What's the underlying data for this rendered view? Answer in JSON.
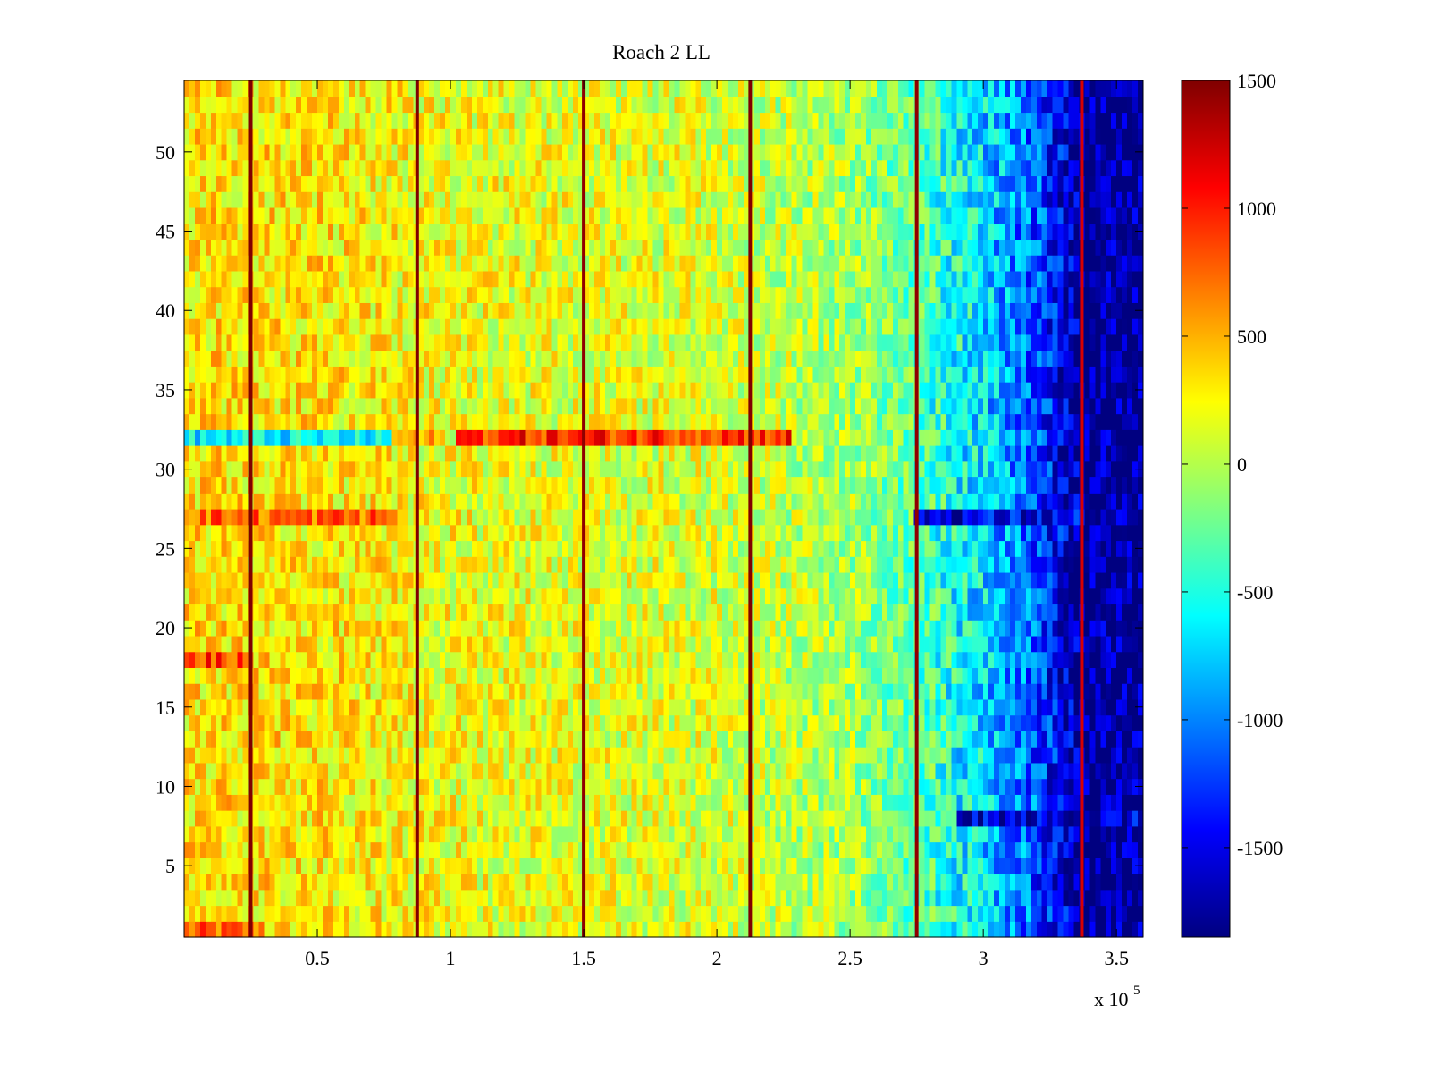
{
  "chart_data": {
    "type": "heatmap",
    "title": "Roach 2 LL",
    "xlabel": "",
    "ylabel": "",
    "x_multiplier_label": "x 10",
    "x_multiplier_exponent": "5",
    "xlim": [
      0,
      3.6
    ],
    "ylim": [
      0.5,
      54.5
    ],
    "x_ticks": [
      0.5,
      1,
      1.5,
      2,
      2.5,
      3,
      3.5
    ],
    "x_tick_labels": [
      "0.5",
      "1",
      "1.5",
      "2",
      "2.5",
      "3",
      "3.5"
    ],
    "y_ticks": [
      5,
      10,
      15,
      20,
      25,
      30,
      35,
      40,
      45,
      50
    ],
    "y_tick_labels": [
      "5",
      "10",
      "15",
      "20",
      "25",
      "30",
      "35",
      "40",
      "45",
      "50"
    ],
    "rows": 54,
    "colorbar": {
      "colormap": "jet",
      "clim": [
        -1850,
        1500
      ],
      "ticks": [
        1500,
        1000,
        500,
        0,
        -500,
        -1000,
        -1500
      ],
      "tick_labels": [
        "1500",
        "1000",
        "500",
        "0",
        "-500",
        "-1000",
        "-1500"
      ]
    },
    "base_level_by_x": [
      {
        "x": 0.0,
        "value": 330
      },
      {
        "x": 0.5,
        "value": 320
      },
      {
        "x": 1.0,
        "value": 200
      },
      {
        "x": 1.5,
        "value": 160
      },
      {
        "x": 2.0,
        "value": 120
      },
      {
        "x": 2.5,
        "value": -50
      },
      {
        "x": 2.75,
        "value": -300
      },
      {
        "x": 3.0,
        "value": -700
      },
      {
        "x": 3.2,
        "value": -1150
      },
      {
        "x": 3.3,
        "value": -1500
      },
      {
        "x": 3.37,
        "value": -1800
      },
      {
        "x": 3.6,
        "value": -1800
      }
    ],
    "vertical_lines": [
      {
        "x": 0.25,
        "value": 1500
      },
      {
        "x": 0.875,
        "value": 1500
      },
      {
        "x": 1.5,
        "value": 1450
      },
      {
        "x": 2.125,
        "value": 1500
      },
      {
        "x": 2.75,
        "value": 1450
      },
      {
        "x": 3.37,
        "value": 1200
      }
    ],
    "row_bands": [
      {
        "row": 32,
        "x_start": 0.0,
        "x_end": 0.78,
        "value": -650
      },
      {
        "row": 32,
        "x_start": 0.78,
        "x_end": 0.95,
        "value": 450
      },
      {
        "row": 32,
        "x_start": 1.03,
        "x_end": 2.27,
        "value": 950
      },
      {
        "row": 27,
        "x_start": 0.0,
        "x_end": 0.8,
        "value": 750
      },
      {
        "row": 27,
        "x_start": 2.75,
        "x_end": 3.37,
        "value": -1500
      },
      {
        "row": 18,
        "x_start": 0.0,
        "x_end": 0.25,
        "value": 900
      },
      {
        "row": 8,
        "x_start": 2.9,
        "x_end": 3.6,
        "value": -1600
      },
      {
        "row": 1,
        "x_start": 0.0,
        "x_end": 0.3,
        "value": 700
      }
    ]
  }
}
